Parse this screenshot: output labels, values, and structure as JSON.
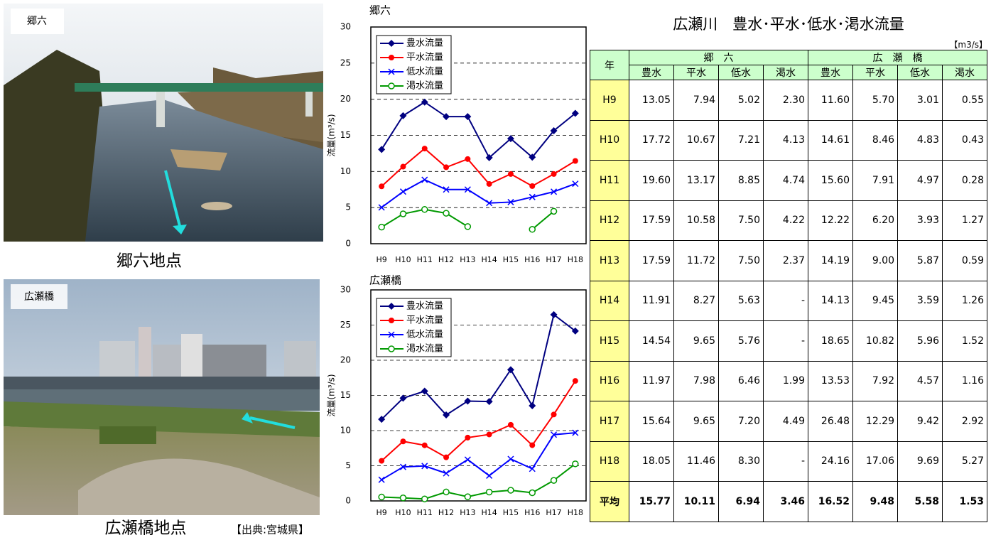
{
  "photos": [
    {
      "label": "郷六",
      "caption": "郷六地点"
    },
    {
      "label": "広瀬橋",
      "caption": "広瀬橋地点"
    }
  ],
  "source": "【出典:宮城県】",
  "chart_data": [
    {
      "type": "line",
      "title": "郷六",
      "ylabel": "流量(m³/s)",
      "categories": [
        "H9",
        "H10",
        "H11",
        "H12",
        "H13",
        "H14",
        "H15",
        "H16",
        "H17",
        "H18"
      ],
      "ylim": [
        0,
        30
      ],
      "yticks": [
        0,
        5,
        10,
        15,
        20,
        25,
        30
      ],
      "grid": true,
      "legend": "upper left",
      "series": [
        {
          "name": "豊水流量",
          "color": "#000080",
          "marker": "diamond",
          "values": [
            13.05,
            17.72,
            19.6,
            17.59,
            17.59,
            11.91,
            14.54,
            11.97,
            15.64,
            18.05
          ]
        },
        {
          "name": "平水流量",
          "color": "#ff0000",
          "marker": "circle",
          "values": [
            7.94,
            10.67,
            13.17,
            10.58,
            11.72,
            8.27,
            9.65,
            7.98,
            9.65,
            11.46
          ]
        },
        {
          "name": "低水流量",
          "color": "#0000ff",
          "marker": "x",
          "values": [
            5.02,
            7.21,
            8.85,
            7.5,
            7.5,
            5.63,
            5.76,
            6.46,
            7.2,
            8.3
          ]
        },
        {
          "name": "渇水流量",
          "color": "#009900",
          "marker": "open-circle",
          "values": [
            2.3,
            4.13,
            4.74,
            4.22,
            2.37,
            null,
            null,
            1.99,
            4.49,
            null
          ]
        }
      ]
    },
    {
      "type": "line",
      "title": "広瀬橋",
      "ylabel": "流量(m³/s)",
      "categories": [
        "H9",
        "H10",
        "H11",
        "H12",
        "H13",
        "H14",
        "H15",
        "H16",
        "H17",
        "H18"
      ],
      "ylim": [
        0,
        30
      ],
      "yticks": [
        0,
        5,
        10,
        15,
        20,
        25,
        30
      ],
      "grid": true,
      "legend": "upper left",
      "series": [
        {
          "name": "豊水流量",
          "color": "#000080",
          "marker": "diamond",
          "values": [
            11.6,
            14.61,
            15.6,
            12.22,
            14.19,
            14.13,
            18.65,
            13.53,
            26.48,
            24.16
          ]
        },
        {
          "name": "平水流量",
          "color": "#ff0000",
          "marker": "circle",
          "values": [
            5.7,
            8.46,
            7.91,
            6.2,
            9.0,
            9.45,
            10.82,
            7.92,
            12.29,
            17.06
          ]
        },
        {
          "name": "低水流量",
          "color": "#0000ff",
          "marker": "x",
          "values": [
            3.01,
            4.83,
            4.97,
            3.93,
            5.87,
            3.59,
            5.96,
            4.57,
            9.42,
            9.69
          ]
        },
        {
          "name": "渇水流量",
          "color": "#009900",
          "marker": "open-circle",
          "values": [
            0.55,
            0.43,
            0.28,
            1.27,
            0.59,
            1.26,
            1.52,
            1.16,
            2.92,
            5.27
          ]
        }
      ]
    }
  ],
  "table": {
    "title": "広瀬川　豊水･平水･低水･渇水流量",
    "unit": "【m3/s】",
    "year_header": "年",
    "groups": [
      "郷　六",
      "広　瀬　橋"
    ],
    "columns": [
      "豊水",
      "平水",
      "低水",
      "渇水",
      "豊水",
      "平水",
      "低水",
      "渇水"
    ],
    "rows": [
      [
        "H9",
        "13.05",
        "7.94",
        "5.02",
        "2.30",
        "11.60",
        "5.70",
        "3.01",
        "0.55"
      ],
      [
        "H10",
        "17.72",
        "10.67",
        "7.21",
        "4.13",
        "14.61",
        "8.46",
        "4.83",
        "0.43"
      ],
      [
        "H11",
        "19.60",
        "13.17",
        "8.85",
        "4.74",
        "15.60",
        "7.91",
        "4.97",
        "0.28"
      ],
      [
        "H12",
        "17.59",
        "10.58",
        "7.50",
        "4.22",
        "12.22",
        "6.20",
        "3.93",
        "1.27"
      ],
      [
        "H13",
        "17.59",
        "11.72",
        "7.50",
        "2.37",
        "14.19",
        "9.00",
        "5.87",
        "0.59"
      ],
      [
        "H14",
        "11.91",
        "8.27",
        "5.63",
        "-",
        "14.13",
        "9.45",
        "3.59",
        "1.26"
      ],
      [
        "H15",
        "14.54",
        "9.65",
        "5.76",
        "-",
        "18.65",
        "10.82",
        "5.96",
        "1.52"
      ],
      [
        "H16",
        "11.97",
        "7.98",
        "6.46",
        "1.99",
        "13.53",
        "7.92",
        "4.57",
        "1.16"
      ],
      [
        "H17",
        "15.64",
        "9.65",
        "7.20",
        "4.49",
        "26.48",
        "12.29",
        "9.42",
        "2.92"
      ],
      [
        "H18",
        "18.05",
        "11.46",
        "8.30",
        "-",
        "24.16",
        "17.06",
        "9.69",
        "5.27"
      ],
      [
        "平均",
        "15.77",
        "10.11",
        "6.94",
        "3.46",
        "16.52",
        "9.48",
        "5.58",
        "1.53"
      ]
    ]
  }
}
